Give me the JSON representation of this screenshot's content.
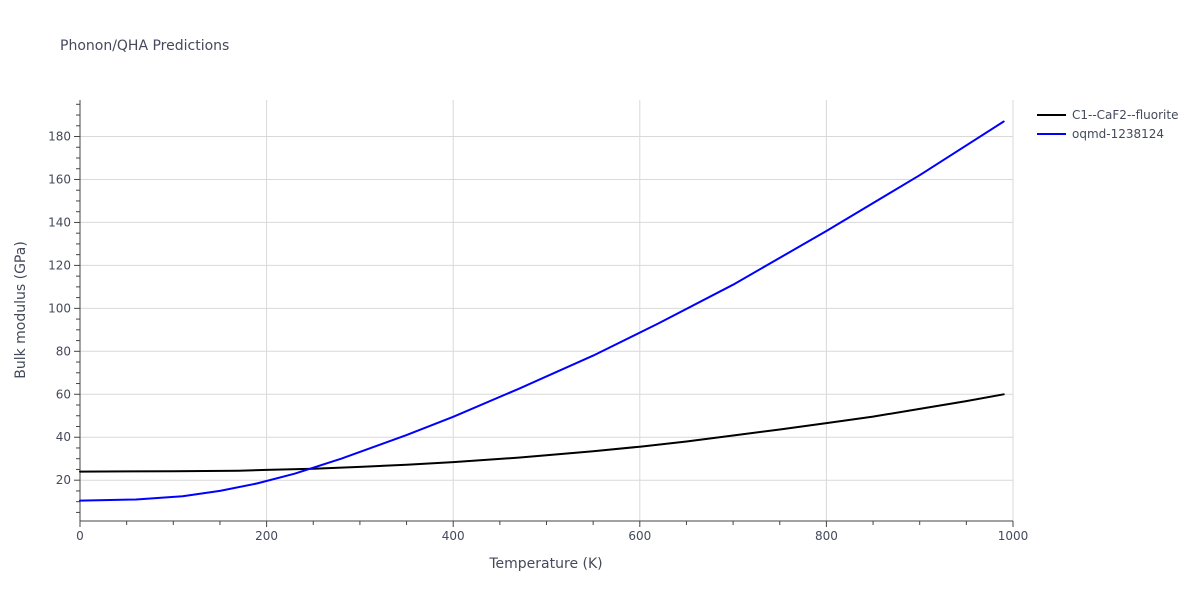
{
  "chart_data": {
    "type": "line",
    "title": "Phonon/QHA Predictions",
    "xlabel": "Temperature (K)",
    "ylabel": "Bulk modulus (GPa)",
    "xlim": [
      0,
      1000
    ],
    "ylim": [
      1,
      197
    ],
    "x_ticks": [
      0,
      200,
      400,
      600,
      800,
      1000
    ],
    "y_ticks": [
      20,
      40,
      60,
      80,
      100,
      120,
      140,
      160,
      180
    ],
    "grid": true,
    "legend_position": "top-right",
    "series": [
      {
        "name": "C1--CaF2--fluorite",
        "color": "#000000",
        "x": [
          0,
          50,
          100,
          170,
          200,
          250,
          300,
          350,
          400,
          470,
          500,
          550,
          600,
          650,
          700,
          750,
          800,
          850,
          900,
          950,
          990
        ],
        "y": [
          24,
          24.1,
          24.2,
          24.4,
          24.8,
          25.3,
          26.2,
          27.2,
          28.4,
          30.5,
          31.6,
          33.5,
          35.6,
          38.0,
          40.8,
          43.6,
          46.6,
          49.6,
          53.2,
          56.8,
          60.0
        ]
      },
      {
        "name": "oqmd-1238124",
        "color": "#0000ff",
        "x": [
          0,
          60,
          110,
          150,
          190,
          230,
          280,
          350,
          400,
          470,
          550,
          620,
          700,
          800,
          900,
          990
        ],
        "y": [
          10.5,
          11.0,
          12.5,
          15.0,
          18.5,
          23.0,
          30.0,
          41.0,
          49.5,
          62.5,
          78.0,
          93.0,
          111.0,
          136.0,
          162.0,
          187.0
        ]
      }
    ]
  }
}
